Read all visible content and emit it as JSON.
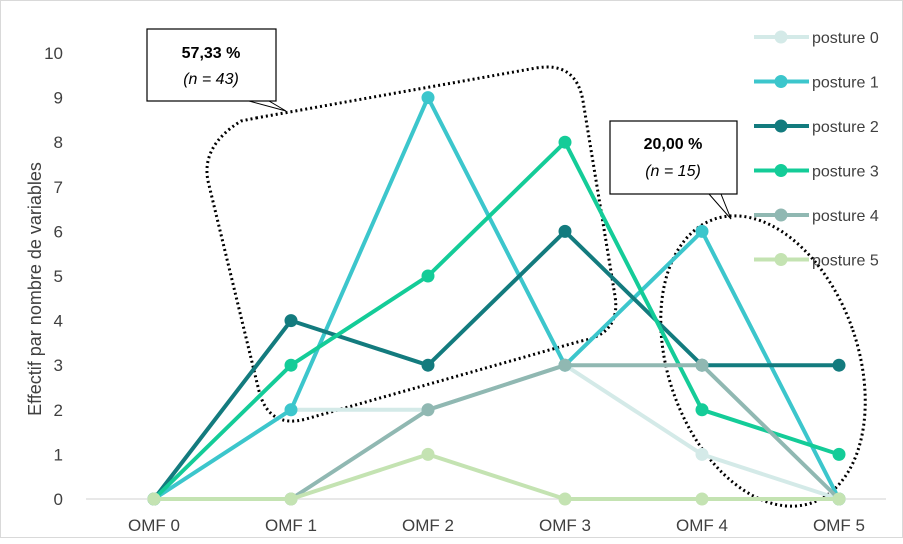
{
  "chart_data": {
    "type": "line",
    "categories": [
      "OMF 0",
      "OMF 1",
      "OMF 2",
      "OMF 3",
      "OMF 4",
      "OMF 5"
    ],
    "ylabel": "Effectif par nombre de variables",
    "xlabel": "",
    "ylim": [
      0,
      10
    ],
    "yticks": [
      "0",
      "1",
      "2",
      "3",
      "4",
      "5",
      "6",
      "7",
      "8",
      "9",
      "10"
    ],
    "grid": false,
    "legend_position": "right",
    "series": [
      {
        "name": "posture 0",
        "color": "#d4eae8",
        "values": [
          0,
          2,
          2,
          3,
          1,
          0
        ]
      },
      {
        "name": "posture 1",
        "color": "#3cc6cc",
        "values": [
          0,
          2,
          9,
          3,
          6,
          0
        ]
      },
      {
        "name": "posture 2",
        "color": "#137b7e",
        "values": [
          0,
          4,
          3,
          6,
          3,
          3
        ]
      },
      {
        "name": "posture 3",
        "color": "#14cc98",
        "values": [
          0,
          3,
          5,
          8,
          2,
          1
        ]
      },
      {
        "name": "posture 4",
        "color": "#90b8b2",
        "values": [
          0,
          0,
          2,
          3,
          3,
          0
        ]
      },
      {
        "name": "posture 5",
        "color": "#c4e3b2",
        "values": [
          0,
          0,
          1,
          0,
          0,
          0
        ]
      }
    ],
    "annotations": [
      {
        "percent": "57,33 %",
        "count": "(n = 43)"
      },
      {
        "percent": "20,00 %",
        "count": "(n = 15)"
      }
    ]
  }
}
